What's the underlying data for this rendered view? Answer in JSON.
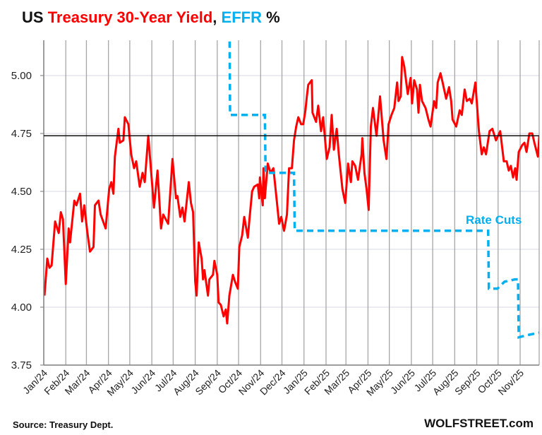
{
  "title": {
    "parts": [
      {
        "text": "US ",
        "color": "#111111"
      },
      {
        "text": "Treasury 30-Year Yield",
        "color": "#ff0000"
      },
      {
        "text": ", ",
        "color": "#111111"
      },
      {
        "text": "EFFR",
        "color": "#00b0f0"
      },
      {
        "text": " %",
        "color": "#111111"
      }
    ]
  },
  "source": "Source: Treasury Dept.",
  "brand": "WOLFSTREET.com",
  "chart_data": {
    "type": "line",
    "title": "US Treasury 30-Year Yield, EFFR %",
    "xlabel": "",
    "ylabel": "",
    "xlim": [
      "2024-01-01",
      "2025-11-28"
    ],
    "ylim": [
      3.75,
      5.15
    ],
    "yticks": [
      3.75,
      4.0,
      4.25,
      4.5,
      4.75,
      5.0
    ],
    "ytick_labels": [
      "3.75",
      "4.00",
      "4.25",
      "4.50",
      "4.75",
      "5.00"
    ],
    "xticks": [
      "2024-01-01",
      "2024-02-01",
      "2024-03-01",
      "2024-04-01",
      "2024-05-01",
      "2024-06-01",
      "2024-07-01",
      "2024-08-01",
      "2024-09-01",
      "2024-10-01",
      "2024-11-01",
      "2024-12-01",
      "2025-01-01",
      "2025-02-01",
      "2025-03-01",
      "2025-04-01",
      "2025-05-01",
      "2025-06-01",
      "2025-07-01",
      "2025-08-01",
      "2025-09-01",
      "2025-10-01",
      "2025-11-01"
    ],
    "xtick_labels": [
      "Jan/24",
      "Feb/24",
      "Mar/24",
      "Apr/24",
      "May/24",
      "Jun/24",
      "Jul/24",
      "Aug/24",
      "Sep/24",
      "Oct/24",
      "Nov/24",
      "Dec/24",
      "Jan/25",
      "Feb/25",
      "Mar/25",
      "Apr/25",
      "May/25",
      "Jun/25",
      "Jul/25",
      "Aug/25",
      "Sep/25",
      "Oct/25",
      "Nov/25"
    ],
    "grid": {
      "vertical": true,
      "horizontal": true
    },
    "reference_line": {
      "value": 4.74,
      "color": "#111111"
    },
    "annotations": [
      {
        "text": "Rate Cuts",
        "color": "#00b0f0"
      }
    ],
    "series": [
      {
        "key": "treasury30",
        "color": "#ff0000",
        "style": "solid",
        "points": [
          [
            "2024-01-02",
            4.05
          ],
          [
            "2024-01-06",
            4.21
          ],
          [
            "2024-01-09",
            4.17
          ],
          [
            "2024-01-12",
            4.18
          ],
          [
            "2024-01-17",
            4.37
          ],
          [
            "2024-01-22",
            4.32
          ],
          [
            "2024-01-25",
            4.41
          ],
          [
            "2024-01-28",
            4.38
          ],
          [
            "2024-02-01",
            4.1
          ],
          [
            "2024-02-05",
            4.34
          ],
          [
            "2024-02-07",
            4.28
          ],
          [
            "2024-02-10",
            4.37
          ],
          [
            "2024-02-13",
            4.46
          ],
          [
            "2024-02-16",
            4.44
          ],
          [
            "2024-02-21",
            4.49
          ],
          [
            "2024-02-24",
            4.37
          ],
          [
            "2024-02-27",
            4.44
          ],
          [
            "2024-03-02",
            4.33
          ],
          [
            "2024-03-06",
            4.24
          ],
          [
            "2024-03-11",
            4.26
          ],
          [
            "2024-03-13",
            4.44
          ],
          [
            "2024-03-18",
            4.46
          ],
          [
            "2024-03-21",
            4.4
          ],
          [
            "2024-03-28",
            4.34
          ],
          [
            "2024-04-02",
            4.51
          ],
          [
            "2024-04-05",
            4.54
          ],
          [
            "2024-04-08",
            4.49
          ],
          [
            "2024-04-10",
            4.65
          ],
          [
            "2024-04-15",
            4.77
          ],
          [
            "2024-04-17",
            4.71
          ],
          [
            "2024-04-22",
            4.72
          ],
          [
            "2024-04-24",
            4.82
          ],
          [
            "2024-04-29",
            4.79
          ],
          [
            "2024-05-03",
            4.66
          ],
          [
            "2024-05-07",
            4.6
          ],
          [
            "2024-05-10",
            4.63
          ],
          [
            "2024-05-15",
            4.52
          ],
          [
            "2024-05-19",
            4.58
          ],
          [
            "2024-05-22",
            4.54
          ],
          [
            "2024-05-27",
            4.74
          ],
          [
            "2024-06-04",
            4.43
          ],
          [
            "2024-06-09",
            4.59
          ],
          [
            "2024-06-14",
            4.34
          ],
          [
            "2024-06-17",
            4.4
          ],
          [
            "2024-06-24",
            4.36
          ],
          [
            "2024-06-30",
            4.64
          ],
          [
            "2024-07-05",
            4.47
          ],
          [
            "2024-07-07",
            4.48
          ],
          [
            "2024-07-11",
            4.39
          ],
          [
            "2024-07-14",
            4.43
          ],
          [
            "2024-07-17",
            4.37
          ],
          [
            "2024-07-23",
            4.54
          ],
          [
            "2024-07-26",
            4.45
          ],
          [
            "2024-07-29",
            4.41
          ],
          [
            "2024-08-01",
            4.11
          ],
          [
            "2024-08-03",
            4.05
          ],
          [
            "2024-08-06",
            4.28
          ],
          [
            "2024-08-10",
            4.21
          ],
          [
            "2024-08-12",
            4.12
          ],
          [
            "2024-08-14",
            4.16
          ],
          [
            "2024-08-19",
            4.05
          ],
          [
            "2024-08-21",
            4.12
          ],
          [
            "2024-08-26",
            4.14
          ],
          [
            "2024-08-28",
            4.2
          ],
          [
            "2024-09-01",
            4.14
          ],
          [
            "2024-09-03",
            4.02
          ],
          [
            "2024-09-06",
            4.01
          ],
          [
            "2024-09-10",
            3.96
          ],
          [
            "2024-09-13",
            3.99
          ],
          [
            "2024-09-15",
            3.93
          ],
          [
            "2024-09-18",
            4.05
          ],
          [
            "2024-09-23",
            4.14
          ],
          [
            "2024-09-26",
            4.11
          ],
          [
            "2024-09-30",
            4.08
          ],
          [
            "2024-10-02",
            4.26
          ],
          [
            "2024-10-06",
            4.31
          ],
          [
            "2024-10-09",
            4.39
          ],
          [
            "2024-10-14",
            4.3
          ],
          [
            "2024-10-16",
            4.37
          ],
          [
            "2024-10-20",
            4.5
          ],
          [
            "2024-10-23",
            4.52
          ],
          [
            "2024-10-28",
            4.53
          ],
          [
            "2024-10-30",
            4.47
          ],
          [
            "2024-10-31",
            4.56
          ],
          [
            "2024-11-04",
            4.44
          ],
          [
            "2024-11-05",
            4.6
          ],
          [
            "2024-11-07",
            4.47
          ],
          [
            "2024-11-11",
            4.62
          ],
          [
            "2024-11-15",
            4.58
          ],
          [
            "2024-11-19",
            4.6
          ],
          [
            "2024-11-24",
            4.45
          ],
          [
            "2024-11-27",
            4.36
          ],
          [
            "2024-11-30",
            4.39
          ],
          [
            "2024-12-04",
            4.33
          ],
          [
            "2024-12-08",
            4.4
          ],
          [
            "2024-12-11",
            4.6
          ],
          [
            "2024-12-15",
            4.6
          ],
          [
            "2024-12-18",
            4.72
          ],
          [
            "2024-12-21",
            4.78
          ],
          [
            "2024-12-24",
            4.82
          ],
          [
            "2024-12-28",
            4.79
          ],
          [
            "2024-12-31",
            4.79
          ],
          [
            "2025-01-03",
            4.85
          ],
          [
            "2025-01-05",
            4.91
          ],
          [
            "2025-01-07",
            4.96
          ],
          [
            "2025-01-12",
            4.98
          ],
          [
            "2025-01-13",
            4.84
          ],
          [
            "2025-01-18",
            4.8
          ],
          [
            "2025-01-21",
            4.87
          ],
          [
            "2025-01-25",
            4.76
          ],
          [
            "2025-01-28",
            4.82
          ],
          [
            "2025-02-02",
            4.64
          ],
          [
            "2025-02-06",
            4.69
          ],
          [
            "2025-02-09",
            4.83
          ],
          [
            "2025-02-12",
            4.68
          ],
          [
            "2025-02-16",
            4.77
          ],
          [
            "2025-02-19",
            4.66
          ],
          [
            "2025-02-24",
            4.51
          ],
          [
            "2025-02-28",
            4.45
          ],
          [
            "2025-03-04",
            4.62
          ],
          [
            "2025-03-08",
            4.54
          ],
          [
            "2025-03-10",
            4.63
          ],
          [
            "2025-03-14",
            4.61
          ],
          [
            "2025-03-18",
            4.55
          ],
          [
            "2025-03-23",
            4.66
          ],
          [
            "2025-03-24",
            4.73
          ],
          [
            "2025-03-27",
            4.58
          ],
          [
            "2025-03-30",
            4.51
          ],
          [
            "2025-04-02",
            4.42
          ],
          [
            "2025-04-05",
            4.78
          ],
          [
            "2025-04-08",
            4.86
          ],
          [
            "2025-04-13",
            4.74
          ],
          [
            "2025-04-18",
            4.91
          ],
          [
            "2025-04-23",
            4.72
          ],
          [
            "2025-04-27",
            4.64
          ],
          [
            "2025-04-30",
            4.79
          ],
          [
            "2025-05-04",
            4.83
          ],
          [
            "2025-05-08",
            4.86
          ],
          [
            "2025-05-12",
            4.97
          ],
          [
            "2025-05-14",
            4.89
          ],
          [
            "2025-05-17",
            4.91
          ],
          [
            "2025-05-19",
            5.08
          ],
          [
            "2025-05-22",
            5.04
          ],
          [
            "2025-05-27",
            4.92
          ],
          [
            "2025-05-31",
            4.99
          ],
          [
            "2025-06-02",
            4.88
          ],
          [
            "2025-06-05",
            4.98
          ],
          [
            "2025-06-09",
            4.94
          ],
          [
            "2025-06-11",
            4.84
          ],
          [
            "2025-06-13",
            4.96
          ],
          [
            "2025-06-16",
            4.89
          ],
          [
            "2025-06-21",
            4.86
          ],
          [
            "2025-06-25",
            4.81
          ],
          [
            "2025-06-28",
            4.78
          ],
          [
            "2025-07-03",
            4.89
          ],
          [
            "2025-07-06",
            4.86
          ],
          [
            "2025-07-08",
            4.97
          ],
          [
            "2025-07-12",
            5.01
          ],
          [
            "2025-07-15",
            4.97
          ],
          [
            "2025-07-20",
            4.9
          ],
          [
            "2025-07-24",
            4.95
          ],
          [
            "2025-07-27",
            4.89
          ],
          [
            "2025-07-29",
            4.81
          ],
          [
            "2025-08-03",
            4.78
          ],
          [
            "2025-08-08",
            4.85
          ],
          [
            "2025-08-11",
            4.83
          ],
          [
            "2025-08-15",
            4.94
          ],
          [
            "2025-08-18",
            4.89
          ],
          [
            "2025-08-22",
            4.9
          ],
          [
            "2025-08-25",
            4.88
          ],
          [
            "2025-08-30",
            4.97
          ],
          [
            "2025-09-04",
            4.76
          ],
          [
            "2025-09-08",
            4.66
          ],
          [
            "2025-09-11",
            4.69
          ],
          [
            "2025-09-14",
            4.66
          ],
          [
            "2025-09-19",
            4.76
          ],
          [
            "2025-09-23",
            4.77
          ],
          [
            "2025-09-28",
            4.72
          ],
          [
            "2025-10-04",
            4.76
          ],
          [
            "2025-10-09",
            4.63
          ],
          [
            "2025-10-13",
            4.63
          ],
          [
            "2025-10-16",
            4.59
          ],
          [
            "2025-10-19",
            4.61
          ],
          [
            "2025-10-22",
            4.56
          ],
          [
            "2025-10-25",
            4.6
          ],
          [
            "2025-10-27",
            4.55
          ],
          [
            "2025-10-30",
            4.67
          ],
          [
            "2025-11-04",
            4.7
          ],
          [
            "2025-11-07",
            4.71
          ],
          [
            "2025-11-10",
            4.67
          ],
          [
            "2025-11-14",
            4.75
          ],
          [
            "2025-11-18",
            4.75
          ],
          [
            "2025-11-21",
            4.71
          ],
          [
            "2025-11-26",
            4.65
          ],
          [
            "2025-11-28",
            4.74
          ]
        ]
      },
      {
        "key": "effr",
        "color": "#00b0f0",
        "style": "dashed",
        "points": [
          [
            "2024-09-18",
            5.33
          ],
          [
            "2024-09-19",
            4.83
          ],
          [
            "2024-11-07",
            4.83
          ],
          [
            "2024-11-08",
            4.58
          ],
          [
            "2024-12-18",
            4.58
          ],
          [
            "2024-12-19",
            4.33
          ],
          [
            "2025-09-17",
            4.33
          ],
          [
            "2025-09-18",
            4.08
          ],
          [
            "2025-09-30",
            4.08
          ],
          [
            "2025-10-10",
            4.11
          ],
          [
            "2025-10-25",
            4.12
          ],
          [
            "2025-10-29",
            4.12
          ],
          [
            "2025-10-30",
            3.87
          ],
          [
            "2025-11-12",
            3.88
          ],
          [
            "2025-11-28",
            3.89
          ]
        ]
      }
    ]
  }
}
